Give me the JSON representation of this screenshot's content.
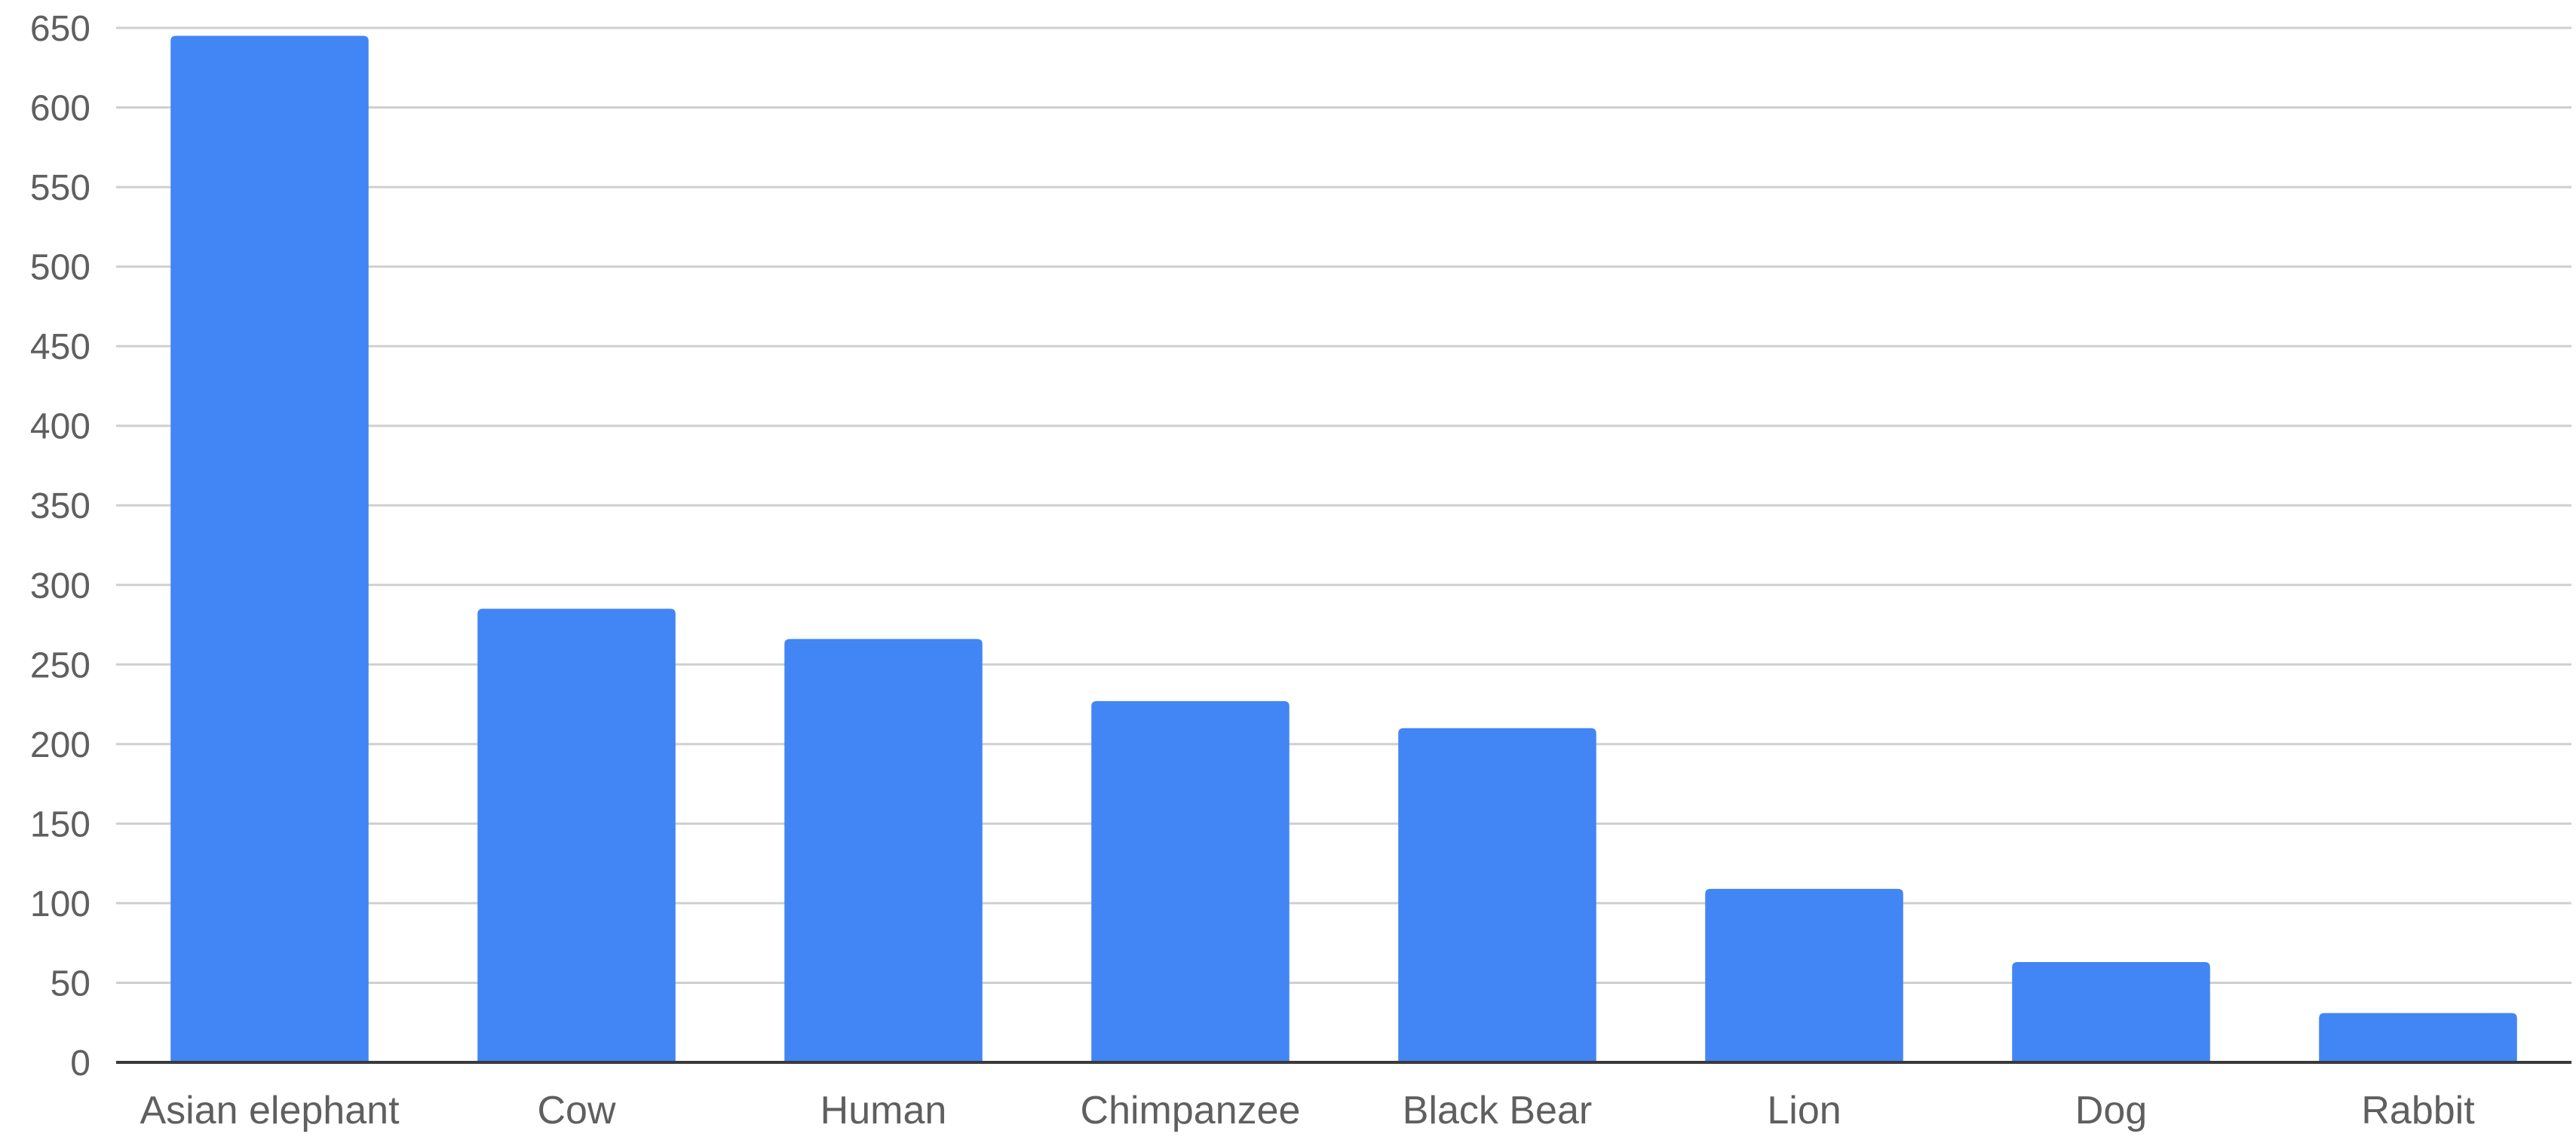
{
  "chart_data": {
    "type": "bar",
    "title": "",
    "xlabel": "",
    "ylabel": "",
    "categories": [
      "Asian elephant",
      "Cow",
      "Human",
      "Chimpanzee",
      "Black Bear",
      "Lion",
      "Dog",
      "Rabbit"
    ],
    "series": [
      {
        "values": [
          645,
          285,
          266,
          227,
          210,
          109,
          63,
          31
        ],
        "color": "#4285f4"
      }
    ],
    "ylim": [
      0,
      650
    ],
    "yticks": [
      0,
      50,
      100,
      150,
      200,
      250,
      300,
      350,
      400,
      450,
      500,
      550,
      600,
      650
    ],
    "grid": true,
    "legend": "none"
  }
}
